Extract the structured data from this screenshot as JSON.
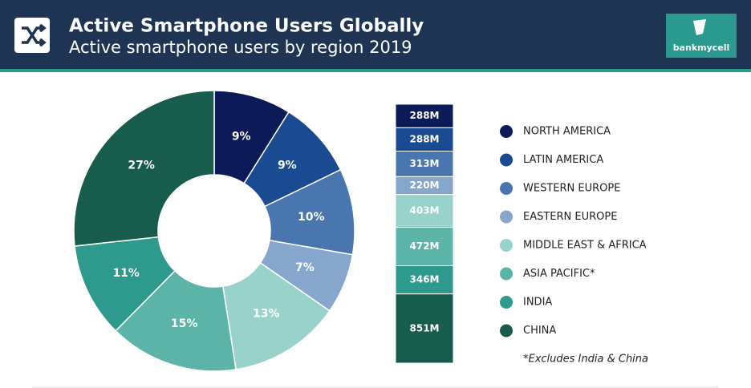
{
  "header": {
    "title": "Active Smartphone Users Globally",
    "subtitle": "Active smartphone users by region 2019",
    "logo": "bankmycell"
  },
  "chart_data": [
    {
      "type": "pie",
      "categories": [
        "NORTH AMERICA",
        "LATIN AMERICA",
        "WESTERN EUROPE",
        "EASTERN EUROPE",
        "MIDDLE EAST & AFRICA",
        "ASIA PACIFIC*",
        "INDIA",
        "CHINA"
      ],
      "values": [
        9,
        9,
        10,
        7,
        13,
        15,
        11,
        27
      ],
      "value_labels": [
        "9%",
        "9%",
        "10%",
        "7%",
        "13%",
        "15%",
        "11%",
        "27%"
      ],
      "colors": [
        "#0c1a58",
        "#1a4a92",
        "#4a76b0",
        "#86a6cc",
        "#98d2ca",
        "#5cb4a8",
        "#2e9a8e",
        "#175c4c"
      ]
    },
    {
      "type": "stacked-bar",
      "values": [
        288,
        288,
        313,
        220,
        403,
        472,
        346,
        851
      ],
      "value_labels": [
        "288M",
        "288M",
        "313M",
        "220M",
        "403M",
        "472M",
        "346M",
        "851M"
      ],
      "colors": [
        "#0c1a58",
        "#1a4a92",
        "#4a76b0",
        "#86a6cc",
        "#98d2ca",
        "#5cb4a8",
        "#2e9a8e",
        "#175c4c"
      ],
      "footnote": "*Excludes India & China"
    }
  ]
}
